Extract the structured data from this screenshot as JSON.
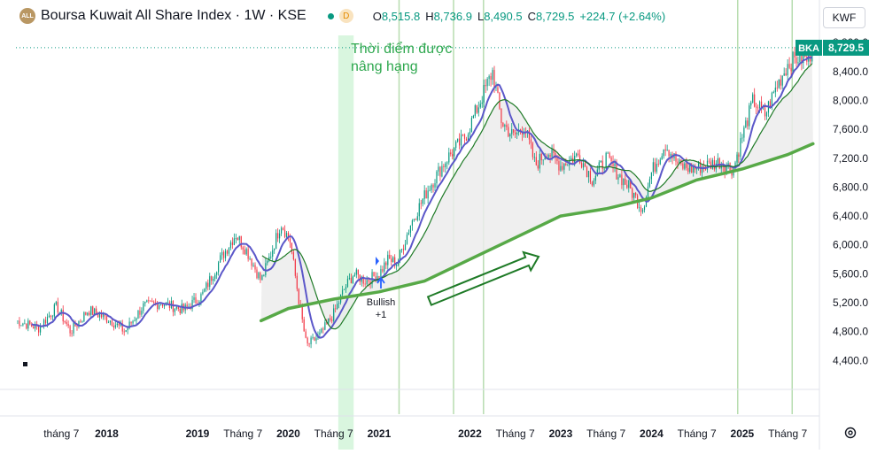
{
  "header": {
    "logo": "ALL",
    "title": "Boursa Kuwait All Share Index · 1W · KSE",
    "status_letter": "D",
    "ohlc": [
      {
        "k": "O",
        "v": "8,515.8"
      },
      {
        "k": "H",
        "v": "8,736.9"
      },
      {
        "k": "L",
        "v": "8,490.5"
      },
      {
        "k": "C",
        "v": "8,729.5"
      },
      {
        "k": "",
        "v": "+224.7 (+2.64%)"
      }
    ]
  },
  "currency_button": "KWF",
  "price_tag": {
    "label": "BKA",
    "value": "8,729.5"
  },
  "colors": {
    "up": "#089981",
    "down": "#f23645",
    "ma_fast": "#5b57c9",
    "ma_mid": "#1e7a26",
    "ma_slow": "#57a947",
    "fill": "#ececec",
    "annotation": "#2fa84f",
    "vline": "#b7ddb0",
    "highlight": "#d9f6df"
  },
  "annotation": {
    "line1": "Thời điểm được",
    "line2": "nâng hạng"
  },
  "signal": {
    "line1": "Bullish",
    "line2": "+1"
  },
  "chart_data": {
    "type": "candlestick",
    "y_axis": {
      "ticks": [
        4400,
        4800,
        5200,
        5600,
        6000,
        6400,
        6800,
        7200,
        7600,
        8000,
        8400,
        8800
      ],
      "ylim": [
        4000,
        8900
      ],
      "position": "right"
    },
    "x_axis": {
      "labels": [
        {
          "t": 2017.5,
          "text": "tháng 7"
        },
        {
          "t": 2018.0,
          "text": "2018"
        },
        {
          "t": 2019.0,
          "text": "2019"
        },
        {
          "t": 2019.5,
          "text": "Tháng 7"
        },
        {
          "t": 2020.0,
          "text": "2020"
        },
        {
          "t": 2020.5,
          "text": "Tháng 7"
        },
        {
          "t": 2021.0,
          "text": "2021"
        },
        {
          "t": 2022.0,
          "text": "2022"
        },
        {
          "t": 2022.5,
          "text": "Tháng 7"
        },
        {
          "t": 2023.0,
          "text": "2023"
        },
        {
          "t": 2023.5,
          "text": "Tháng 7"
        },
        {
          "t": 2024.0,
          "text": "2024"
        },
        {
          "t": 2024.5,
          "text": "Tháng 7"
        },
        {
          "t": 2025.0,
          "text": "2025"
        },
        {
          "t": 2025.5,
          "text": "Tháng 7"
        }
      ],
      "range": [
        2017.0,
        2025.85
      ]
    },
    "price_path": [
      [
        2017.0,
        4950
      ],
      [
        2017.25,
        4850
      ],
      [
        2017.45,
        5150
      ],
      [
        2017.6,
        4800
      ],
      [
        2017.8,
        5100
      ],
      [
        2018.05,
        4950
      ],
      [
        2018.2,
        4800
      ],
      [
        2018.4,
        5150
      ],
      [
        2018.6,
        5200
      ],
      [
        2018.85,
        5100
      ],
      [
        2019.05,
        5300
      ],
      [
        2019.25,
        5800
      ],
      [
        2019.42,
        6150
      ],
      [
        2019.55,
        5900
      ],
      [
        2019.7,
        5500
      ],
      [
        2019.8,
        5850
      ],
      [
        2019.92,
        6300
      ],
      [
        2020.02,
        6050
      ],
      [
        2020.12,
        5200
      ],
      [
        2020.2,
        4600
      ],
      [
        2020.35,
        4750
      ],
      [
        2020.5,
        5050
      ],
      [
        2020.62,
        5400
      ],
      [
        2020.72,
        5600
      ],
      [
        2020.85,
        5500
      ],
      [
        2021.0,
        5600
      ],
      [
        2021.1,
        5800
      ],
      [
        2021.2,
        5750
      ],
      [
        2021.35,
        6300
      ],
      [
        2021.55,
        6800
      ],
      [
        2021.75,
        7200
      ],
      [
        2021.95,
        7500
      ],
      [
        2022.1,
        7950
      ],
      [
        2022.25,
        8400
      ],
      [
        2022.35,
        7700
      ],
      [
        2022.48,
        7500
      ],
      [
        2022.6,
        7650
      ],
      [
        2022.72,
        7100
      ],
      [
        2022.85,
        7300
      ],
      [
        2023.0,
        7100
      ],
      [
        2023.2,
        7250
      ],
      [
        2023.35,
        6900
      ],
      [
        2023.5,
        7200
      ],
      [
        2023.62,
        7000
      ],
      [
        2023.75,
        6800
      ],
      [
        2023.9,
        6500
      ],
      [
        2024.0,
        7000
      ],
      [
        2024.15,
        7400
      ],
      [
        2024.3,
        7100
      ],
      [
        2024.45,
        7050
      ],
      [
        2024.6,
        7100
      ],
      [
        2024.75,
        7150
      ],
      [
        2024.9,
        7050
      ],
      [
        2025.0,
        7500
      ],
      [
        2025.12,
        8000
      ],
      [
        2025.25,
        7800
      ],
      [
        2025.38,
        8200
      ],
      [
        2025.5,
        8500
      ],
      [
        2025.62,
        8600
      ],
      [
        2025.72,
        8560
      ],
      [
        2025.78,
        8729.5
      ]
    ],
    "ma_slow_path": [
      [
        2019.7,
        4950
      ],
      [
        2020.0,
        5120
      ],
      [
        2020.5,
        5250
      ],
      [
        2021.0,
        5350
      ],
      [
        2021.5,
        5500
      ],
      [
        2022.0,
        5800
      ],
      [
        2022.5,
        6100
      ],
      [
        2023.0,
        6400
      ],
      [
        2023.5,
        6500
      ],
      [
        2024.0,
        6650
      ],
      [
        2024.5,
        6900
      ],
      [
        2025.0,
        7050
      ],
      [
        2025.5,
        7250
      ],
      [
        2025.78,
        7400
      ]
    ],
    "last_close": 8729.5,
    "highlight_band": [
      2020.55,
      2020.72
    ],
    "vertical_lines": [
      2021.22,
      2021.82,
      2022.15,
      2024.95,
      2025.55
    ]
  }
}
